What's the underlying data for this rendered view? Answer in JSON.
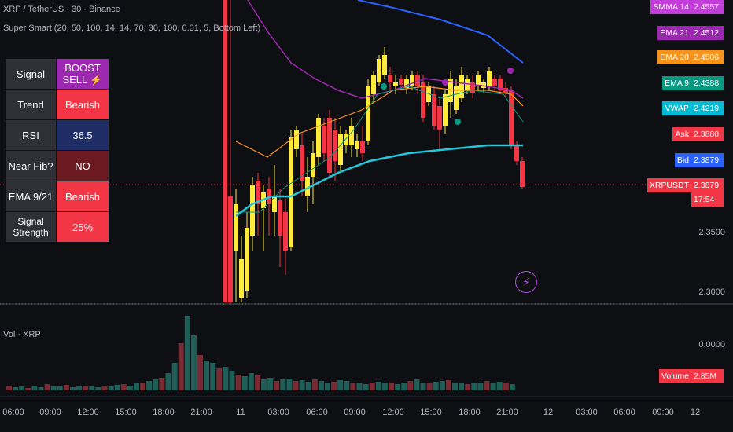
{
  "header": {
    "title": "XRP / TetherUS · 30 · Binance",
    "indicator": "Super Smart (20, 50, 100, 14, 14, 70, 30, 100, 0.01, 5, Bottom Left)"
  },
  "signal_table": [
    {
      "label": "Signal",
      "value": "BOOST SELL ⚡",
      "color": "#9c27b0"
    },
    {
      "label": "Trend",
      "value": "Bearish",
      "color": "#f23645"
    },
    {
      "label": "RSI",
      "value": "36.5",
      "color": "#1e2d66"
    },
    {
      "label": "Near Fib?",
      "value": "NO",
      "color": "#6b1a22"
    },
    {
      "label": "EMA 9/21",
      "value": "Bearish",
      "color": "#f23645"
    },
    {
      "label": "Signal Strength",
      "value": "25%",
      "color": "#f23645"
    }
  ],
  "price_tags": [
    {
      "name": "SMMA 14",
      "value": "2.4557",
      "color": "#c33ddb"
    },
    {
      "name": "EMA 21",
      "value": "2.4512",
      "color": "#9c27b0"
    },
    {
      "name": "EMA 20",
      "value": "2.4506",
      "color": "#f7931a"
    },
    {
      "name": "EMA 9",
      "value": "2.4388",
      "color": "#089981"
    },
    {
      "name": "VWAP",
      "value": "2.4219",
      "color": "#00bcd4"
    },
    {
      "name": "Ask",
      "value": "2.3880",
      "color": "#f23645"
    },
    {
      "name": "Bid",
      "value": "2.3879",
      "color": "#2962ff"
    },
    {
      "name": "XRPUSDT",
      "value": "2.3879",
      "color": "#f23645"
    }
  ],
  "countdown": "17:54",
  "price_axis": [
    "2.3500",
    "2.3000"
  ],
  "volume": {
    "title": "Vol · XRP",
    "axis_zero": "0.0000",
    "tag_name": "Volume",
    "tag_value": "2.85M"
  },
  "time_axis": [
    "06:00",
    "09:00",
    "12:00",
    "15:00",
    "18:00",
    "21:00",
    "11",
    "03:00",
    "06:00",
    "09:00",
    "12:00",
    "15:00",
    "18:00",
    "21:00",
    "12",
    "03:00",
    "06:00",
    "09:00",
    "12"
  ],
  "colors": {
    "bull": "#ffeb3b",
    "bear": "#f23645",
    "ema100": "#2962ff",
    "vwap": "#26c6da"
  }
}
